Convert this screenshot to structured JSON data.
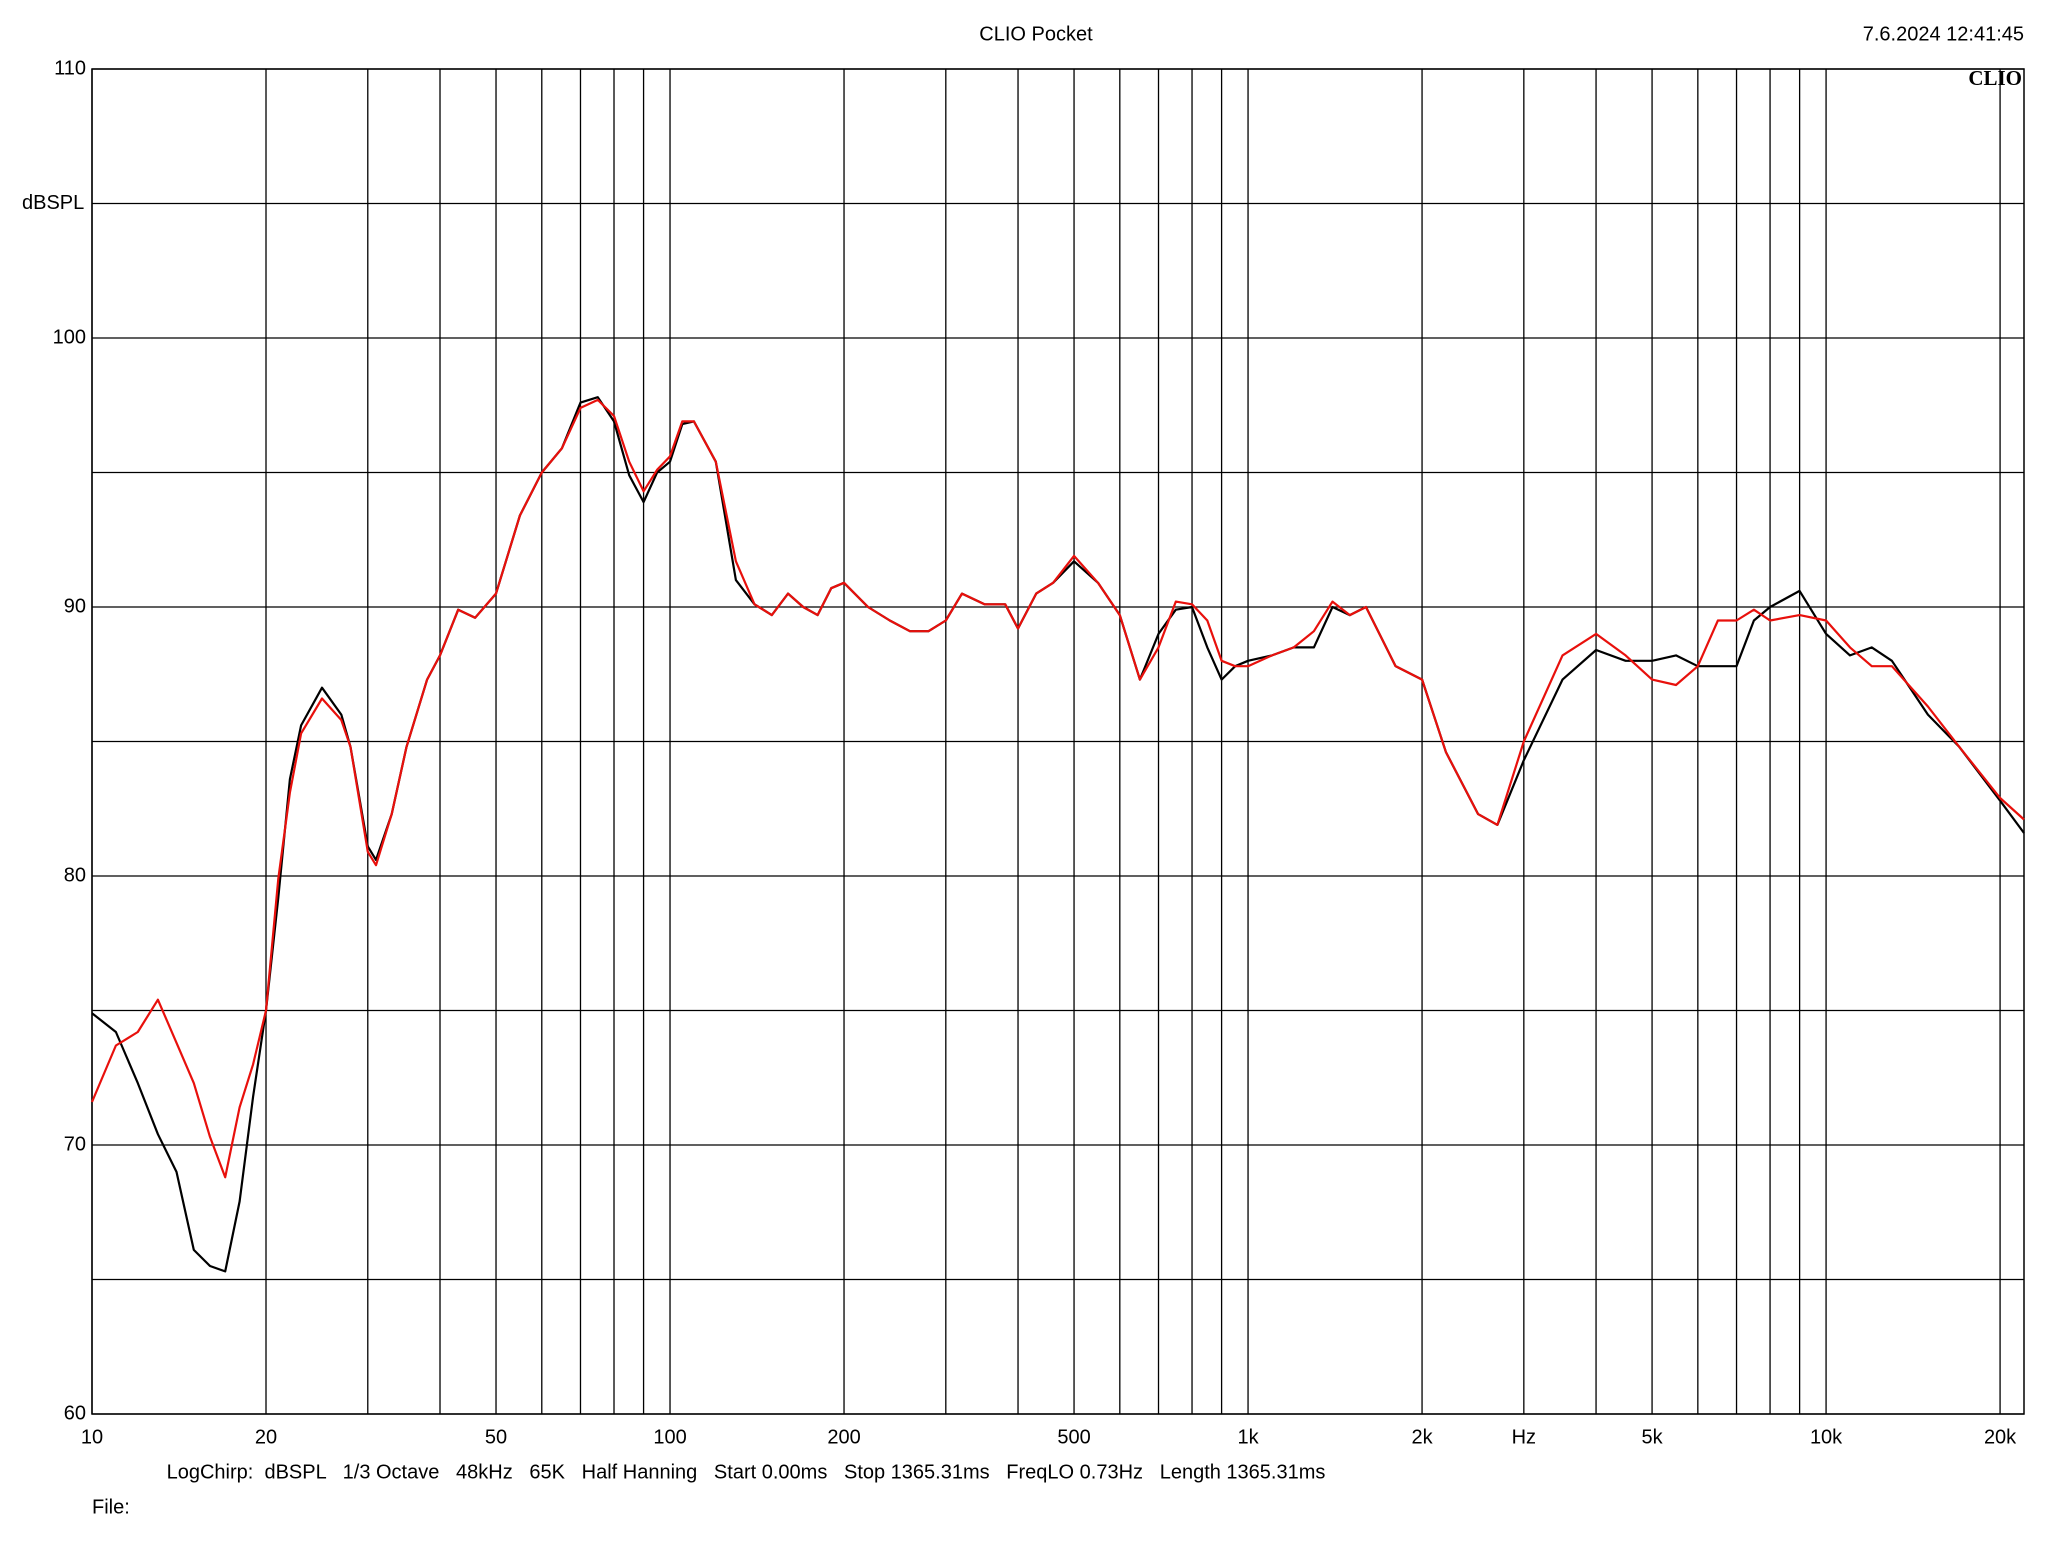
{
  "chart_data": {
    "type": "line",
    "title": "CLIO Pocket",
    "timestamp": "7.6.2024 12:41:45",
    "logo": "CLIO",
    "footer": "LogChirp:  dBSPL   1/3 Octave   48kHz   65K   Half Hanning   Start 0.00ms   Stop 1365.31ms   FreqLO 0.73Hz   Length 1365.31ms",
    "file_label": "File:",
    "xscale": "log",
    "grid": true,
    "xlim": [
      10,
      22000
    ],
    "ylim": [
      60,
      110
    ],
    "xticks": [
      10,
      20,
      50,
      100,
      200,
      500,
      {
        "value": 1000,
        "label": "1k"
      },
      {
        "value": 2000,
        "label": "2k"
      },
      {
        "value": 3000,
        "label": "Hz"
      },
      {
        "value": 5000,
        "label": "5k"
      },
      {
        "value": 10000,
        "label": "10k"
      },
      {
        "value": 20000,
        "label": "20k"
      }
    ],
    "minor_xticks": [
      30,
      40,
      60,
      70,
      80,
      90,
      300,
      400,
      600,
      700,
      800,
      900,
      4000,
      6000,
      7000,
      8000,
      9000
    ],
    "yticks": [
      60,
      70,
      80,
      90,
      100,
      {
        "value": 105,
        "label": "dBSPL"
      },
      110
    ],
    "minor_yticks": [
      65,
      75,
      85,
      95
    ],
    "x": [
      10,
      11,
      12,
      13,
      14,
      15,
      16,
      17,
      18,
      19,
      20,
      21,
      22,
      23,
      25,
      27,
      28,
      30,
      31,
      33,
      35,
      38,
      40,
      43,
      46,
      50,
      55,
      60,
      65,
      70,
      75,
      80,
      85,
      90,
      95,
      100,
      105,
      110,
      120,
      130,
      140,
      150,
      160,
      170,
      180,
      190,
      200,
      220,
      240,
      260,
      280,
      300,
      320,
      350,
      380,
      400,
      430,
      460,
      500,
      550,
      600,
      650,
      700,
      750,
      800,
      850,
      900,
      950,
      1000,
      1100,
      1200,
      1300,
      1400,
      1500,
      1600,
      1800,
      2000,
      2200,
      2500,
      2700,
      3000,
      3500,
      4000,
      4500,
      5000,
      5500,
      6000,
      6500,
      7000,
      7500,
      8000,
      9000,
      10000,
      11000,
      12000,
      13000,
      15000,
      17000,
      20000,
      22000
    ],
    "series": [
      {
        "color": "#000000",
        "values": [
          74.9,
          74.2,
          72.3,
          70.4,
          69.0,
          66.1,
          65.5,
          65.3,
          67.9,
          71.8,
          75.0,
          79.2,
          83.6,
          85.6,
          87.0,
          86.0,
          84.8,
          81.1,
          80.6,
          82.3,
          84.8,
          87.3,
          88.2,
          89.9,
          89.6,
          90.5,
          93.4,
          95.0,
          95.9,
          97.6,
          97.8,
          96.9,
          94.9,
          93.9,
          95.0,
          95.4,
          96.8,
          96.9,
          95.4,
          91.0,
          90.1,
          89.7,
          90.5,
          90.0,
          89.7,
          90.7,
          90.9,
          90.0,
          89.5,
          89.1,
          89.1,
          89.5,
          90.5,
          90.1,
          90.1,
          89.2,
          90.5,
          90.9,
          91.7,
          90.9,
          89.7,
          87.3,
          89.0,
          89.9,
          90.0,
          88.5,
          87.3,
          87.8,
          88.0,
          88.2,
          88.5,
          88.5,
          90.0,
          89.7,
          90.0,
          87.8,
          87.3,
          84.6,
          82.3,
          81.9,
          84.3,
          87.3,
          88.4,
          88.0,
          88.0,
          88.2,
          87.8,
          87.8,
          87.8,
          89.5,
          90.0,
          90.6,
          89.0,
          88.2,
          88.5,
          88.0,
          86.0,
          84.8,
          82.8,
          81.6
        ]
      },
      {
        "color": "#e8100c",
        "values": [
          71.6,
          73.7,
          74.2,
          75.4,
          73.8,
          72.3,
          70.3,
          68.8,
          71.4,
          73.0,
          75.0,
          79.9,
          83.1,
          85.3,
          86.6,
          85.8,
          84.8,
          80.9,
          80.4,
          82.3,
          84.8,
          87.3,
          88.2,
          89.9,
          89.6,
          90.5,
          93.4,
          95.0,
          95.9,
          97.4,
          97.7,
          97.1,
          95.4,
          94.3,
          95.1,
          95.6,
          96.9,
          96.9,
          95.4,
          91.7,
          90.1,
          89.7,
          90.5,
          90.0,
          89.7,
          90.7,
          90.9,
          90.0,
          89.5,
          89.1,
          89.1,
          89.5,
          90.5,
          90.1,
          90.1,
          89.2,
          90.5,
          90.9,
          91.9,
          90.9,
          89.7,
          87.3,
          88.5,
          90.2,
          90.1,
          89.5,
          88.0,
          87.8,
          87.8,
          88.2,
          88.5,
          89.1,
          90.2,
          89.7,
          90.0,
          87.8,
          87.3,
          84.6,
          82.3,
          81.9,
          85.0,
          88.2,
          89.0,
          88.2,
          87.3,
          87.1,
          87.8,
          89.5,
          89.5,
          89.9,
          89.5,
          89.7,
          89.5,
          88.5,
          87.8,
          87.8,
          86.3,
          84.8,
          82.9,
          82.1
        ]
      }
    ]
  }
}
